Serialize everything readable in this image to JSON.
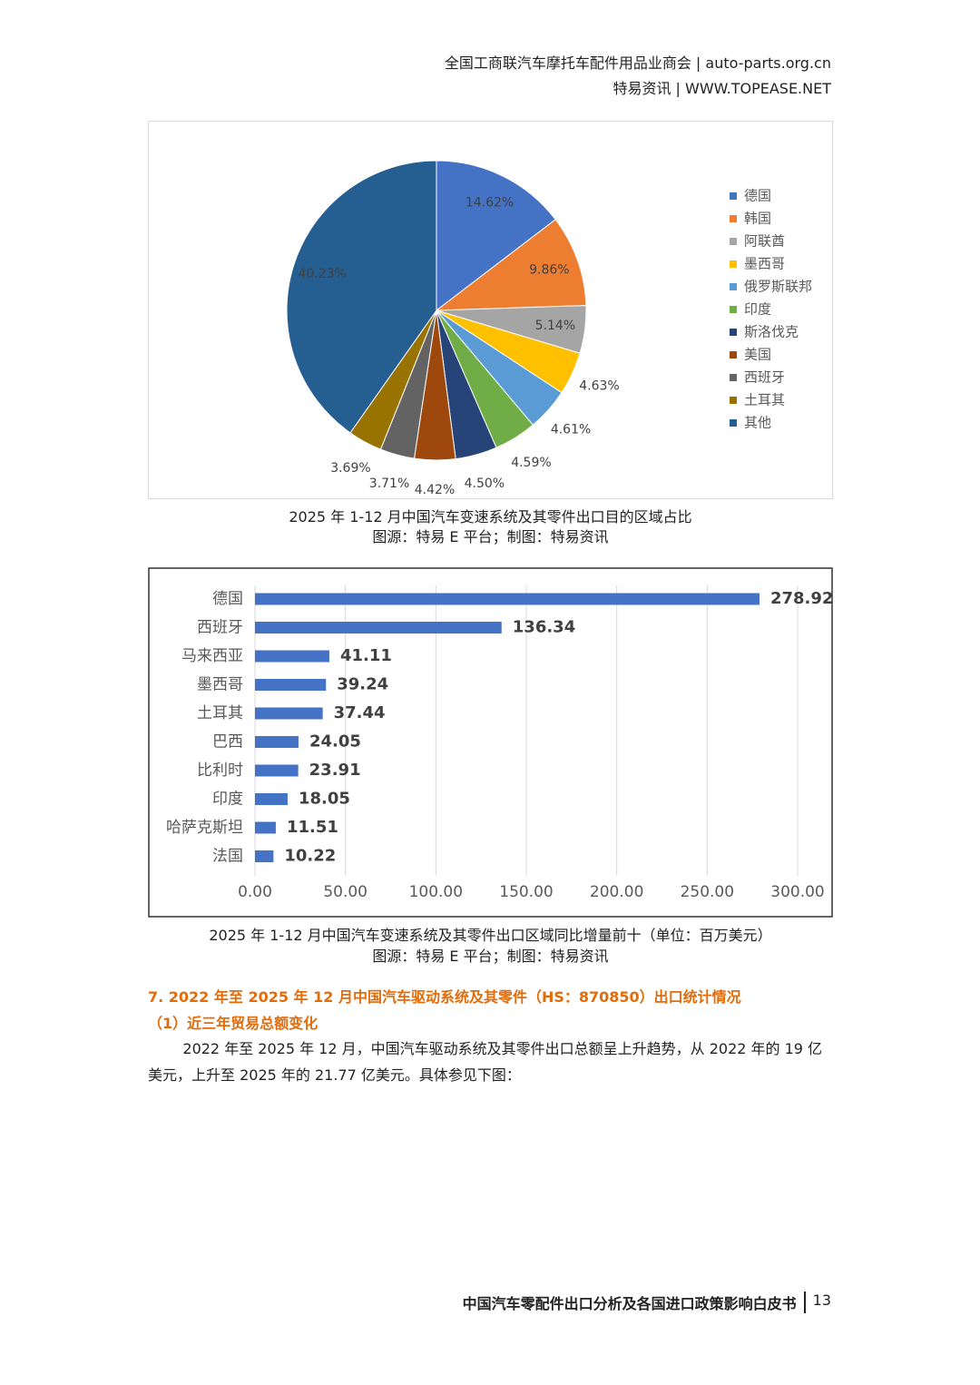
{
  "header": {
    "line1": "全国工商联汽车摩托车配件用品业商会 | auto-parts.org.cn",
    "line2": "特易资讯 | WWW.TOPEASE.NET"
  },
  "chart_data": [
    {
      "type": "pie",
      "title": "2025 年 1-12 月中国汽车变速系统及其零件出口目的区域占比",
      "source": "图源：特易 E 平台；制图：特易资讯",
      "categories": [
        "德国",
        "韩国",
        "阿联酋",
        "墨西哥",
        "俄罗斯联邦",
        "印度",
        "斯洛伐克",
        "美国",
        "西班牙",
        "土耳其",
        "其他"
      ],
      "values": [
        14.62,
        9.86,
        5.14,
        4.63,
        4.61,
        4.59,
        4.5,
        4.42,
        3.71,
        3.69,
        40.23
      ],
      "value_labels": [
        "14.62%",
        "9.86%",
        "5.14%",
        "4.63%",
        "4.61%",
        "4.59%",
        "4.50%",
        "4.42%",
        "3.71%",
        "3.69%",
        "40.23%"
      ],
      "colors": [
        "#4472c4",
        "#ed7d31",
        "#a5a5a5",
        "#ffc000",
        "#5b9bd5",
        "#70ad47",
        "#264478",
        "#9e480e",
        "#636363",
        "#997300",
        "#255e91"
      ],
      "legend": "right"
    },
    {
      "type": "barh",
      "title": "2025 年 1-12 月中国汽车变速系统及其零件出口区域同比增量前十（单位：百万美元）",
      "source": "图源：特易 E 平台；制图：特易资讯",
      "categories": [
        "德国",
        "西班牙",
        "马来西亚",
        "墨西哥",
        "土耳其",
        "巴西",
        "比利时",
        "印度",
        "哈萨克斯坦",
        "法国"
      ],
      "values": [
        278.92,
        136.34,
        41.11,
        39.24,
        37.44,
        24.05,
        23.91,
        18.05,
        11.51,
        10.22
      ],
      "color": "#4472c4",
      "xlim": [
        0,
        300
      ],
      "xticks": [
        {
          "value": 0,
          "label": "0.00"
        },
        {
          "value": 50,
          "label": "50.00"
        },
        {
          "value": 100,
          "label": "100.00"
        },
        {
          "value": 150,
          "label": "150.00"
        },
        {
          "value": 200,
          "label": "200.00"
        },
        {
          "value": 250,
          "label": "250.00"
        },
        {
          "value": 300,
          "label": "300.00"
        }
      ],
      "grid": true
    }
  ],
  "section": {
    "heading": "7. 2022 年至 2025 年 12 月中国汽车驱动系统及其零件（HS：870850）出口统计情况",
    "subheading": "（1）近三年贸易总额变化",
    "paragraph": "2022 年至 2025 年 12 月，中国汽车驱动系统及其零件出口总额呈上升趋势，从 2022 年的 19 亿美元，上升至 2025 年的 21.77 亿美元。具体参见下图："
  },
  "footer": {
    "title": "中国汽车零配件出口分析及各国进口政策影响白皮书",
    "page": "13"
  }
}
